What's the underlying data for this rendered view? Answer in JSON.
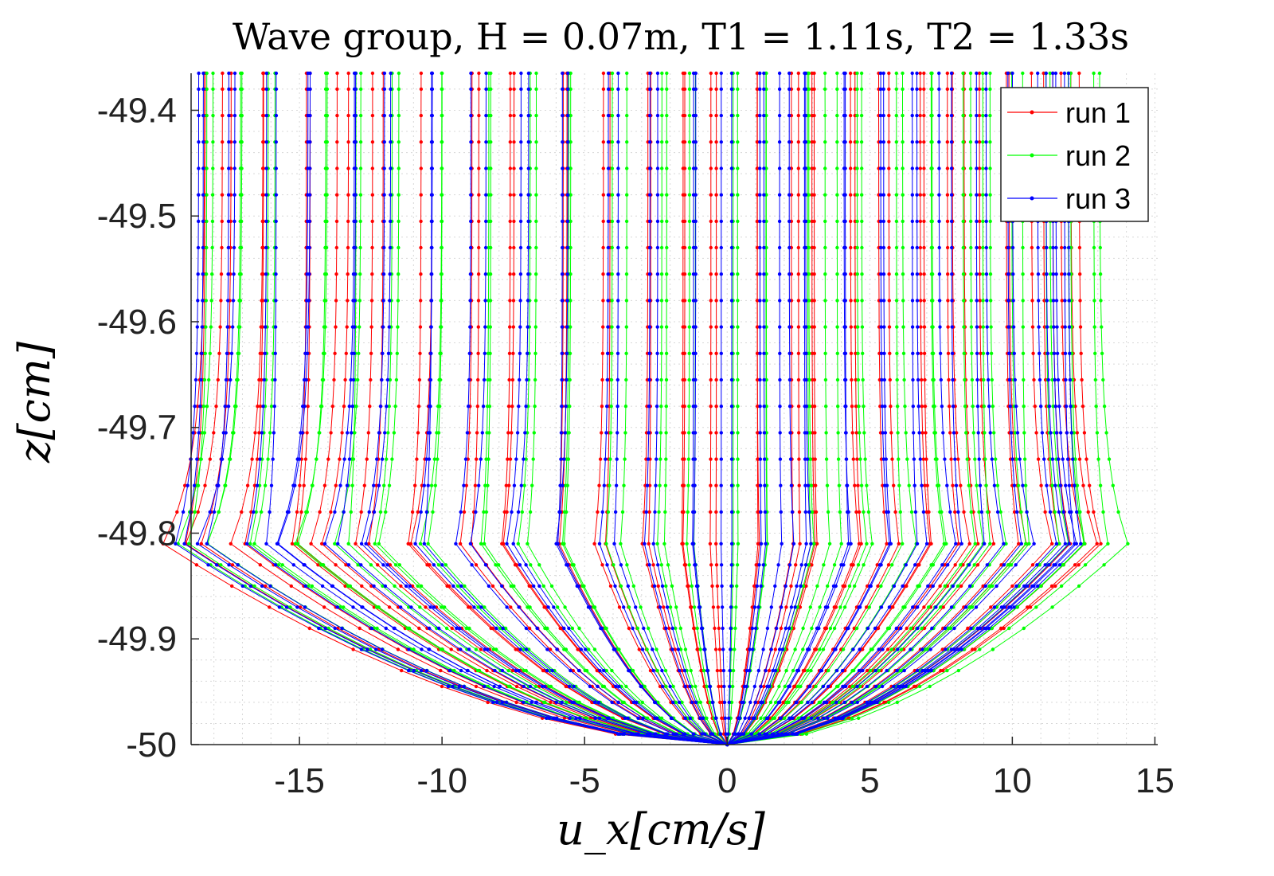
{
  "chart_data": {
    "type": "line",
    "title": "Wave group, H = 0.07m, T1 = 1.11s, T2 = 1.33s",
    "xlabel": "u_x[cm/s]",
    "ylabel": "z[cm]",
    "xlim": [
      -18.8,
      15.1
    ],
    "ylim": [
      -50,
      -49.365
    ],
    "x_ticks": [
      -15,
      -10,
      -5,
      0,
      5,
      10,
      15
    ],
    "y_ticks": [
      -50,
      -49.9,
      -49.8,
      -49.7,
      -49.6,
      -49.5,
      -49.4
    ],
    "x_tick_labels": [
      "-15",
      "-10",
      "-5",
      "0",
      "5",
      "10",
      "15"
    ],
    "y_tick_labels": [
      "-50",
      "-49.9",
      "-49.8",
      "-49.7",
      "-49.6",
      "-49.5",
      "-49.4"
    ],
    "grid": "minor dotted",
    "legend_position": "top-right",
    "z_levels": [
      -50,
      -49.99,
      -49.975,
      -49.96,
      -49.945,
      -49.93,
      -49.91,
      -49.89,
      -49.87,
      -49.85,
      -49.83,
      -49.81,
      -49.78,
      -49.755,
      -49.73,
      -49.705,
      -49.68,
      -49.655,
      -49.63,
      -49.605,
      -49.58,
      -49.555,
      -49.53,
      -49.505,
      -49.48,
      -49.455,
      -49.43,
      -49.405,
      -49.38,
      -49.365
    ],
    "series": [
      {
        "name": "run 1",
        "color": "#ff0000",
        "profiles_top_velocity": [
          -18.4,
          -17.5,
          -16.4,
          -14.8,
          -13.5,
          -12.2,
          -10.6,
          -8.9,
          -7.4,
          -5.9,
          -4.3,
          -2.8,
          -1.6,
          -0.5,
          1.1,
          2.4,
          3.1,
          4.3,
          5.6,
          6.8,
          7.9,
          8.6,
          9.7,
          10.8,
          11.6,
          12.3
        ]
      },
      {
        "name": "run 2",
        "color": "#00ff00",
        "profiles_top_velocity": [
          -18.0,
          -16.9,
          -15.8,
          -14.2,
          -12.9,
          -11.6,
          -10.1,
          -8.4,
          -6.8,
          -5.4,
          -3.8,
          -2.3,
          -1.1,
          0.3,
          1.6,
          2.7,
          3.6,
          4.8,
          6.1,
          7.3,
          8.4,
          9.1,
          10.2,
          11.2,
          12.0,
          12.8
        ]
      },
      {
        "name": "run 3",
        "color": "#0000ff",
        "profiles_top_velocity": [
          -18.6,
          -17.2,
          -16.1,
          -14.5,
          -13.2,
          -11.9,
          -10.4,
          -8.7,
          -7.1,
          -5.6,
          -4.0,
          -2.6,
          -1.3,
          0.0,
          1.3,
          2.1,
          2.9,
          4.1,
          5.3,
          6.6,
          7.7,
          8.9,
          9.9,
          10.9,
          11.4,
          12.1
        ]
      }
    ]
  }
}
